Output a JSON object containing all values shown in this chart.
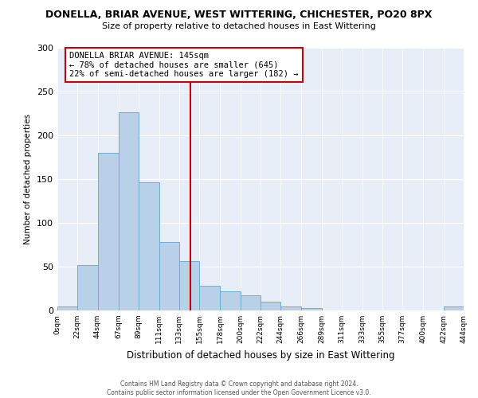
{
  "title": "DONELLA, BRIAR AVENUE, WEST WITTERING, CHICHESTER, PO20 8PX",
  "subtitle": "Size of property relative to detached houses in East Wittering",
  "xlabel": "Distribution of detached houses by size in East Wittering",
  "ylabel": "Number of detached properties",
  "bin_edges": [
    0,
    22,
    44,
    67,
    89,
    111,
    133,
    155,
    178,
    200,
    222,
    244,
    266,
    289,
    311,
    333,
    355,
    377,
    400,
    422,
    444
  ],
  "bin_labels": [
    "0sqm",
    "22sqm",
    "44sqm",
    "67sqm",
    "89sqm",
    "111sqm",
    "133sqm",
    "155sqm",
    "178sqm",
    "200sqm",
    "222sqm",
    "244sqm",
    "266sqm",
    "289sqm",
    "311sqm",
    "333sqm",
    "355sqm",
    "377sqm",
    "400sqm",
    "422sqm",
    "444sqm"
  ],
  "bar_heights": [
    5,
    52,
    180,
    226,
    146,
    78,
    56,
    28,
    22,
    17,
    10,
    5,
    3,
    0,
    0,
    0,
    0,
    0,
    0,
    5
  ],
  "bar_color": "#b8d0e8",
  "bar_edge_color": "#6aaed6",
  "vline_x": 145,
  "vline_color": "#cc0000",
  "annotation_title": "DONELLA BRIAR AVENUE: 145sqm",
  "annotation_line1": "← 78% of detached houses are smaller (645)",
  "annotation_line2": "22% of semi-detached houses are larger (182) →",
  "annotation_box_color": "#cc0000",
  "ylim": [
    0,
    300
  ],
  "yticks": [
    0,
    50,
    100,
    150,
    200,
    250,
    300
  ],
  "background_color": "#e8eef8",
  "footer1": "Contains HM Land Registry data © Crown copyright and database right 2024.",
  "footer2": "Contains public sector information licensed under the Open Government Licence v3.0."
}
